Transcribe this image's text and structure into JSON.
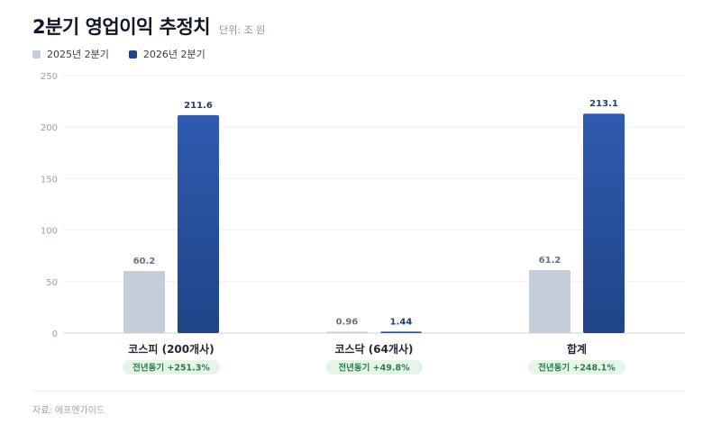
{
  "header": {
    "title": "2분기 영업이익 추정치",
    "unit": "단위: 조 원"
  },
  "source": "자료: 에프엔가이드",
  "colors": {
    "prev": "#c4ceda",
    "curr_top": "#2f5bb0",
    "curr_bottom": "#1f4587"
  },
  "chart_data": {
    "type": "bar",
    "title": "2분기 영업이익 추정치",
    "categories": [
      "코스피 (200개사)",
      "코스닥 (64개사)",
      "합계"
    ],
    "series": [
      {
        "name": "2025년 2분기",
        "values": [
          60.2,
          0.96,
          61.2
        ],
        "labels": [
          "60.2",
          "0.96",
          "61.2"
        ],
        "color": "#c4ceda"
      },
      {
        "name": "2026년 2분기",
        "values": [
          211.6,
          1.44,
          213.1
        ],
        "labels": [
          "211.6",
          "1.44",
          "213.1"
        ],
        "color": "#1f4587"
      }
    ],
    "badges": [
      "전년동기 +251.3%",
      "전년동기 +49.8%",
      "전년동기 +248.1%"
    ],
    "ylim": [
      0,
      250
    ],
    "yticks": [
      0,
      50,
      100,
      150,
      200,
      250
    ],
    "grid": true,
    "legend": "top-left"
  }
}
